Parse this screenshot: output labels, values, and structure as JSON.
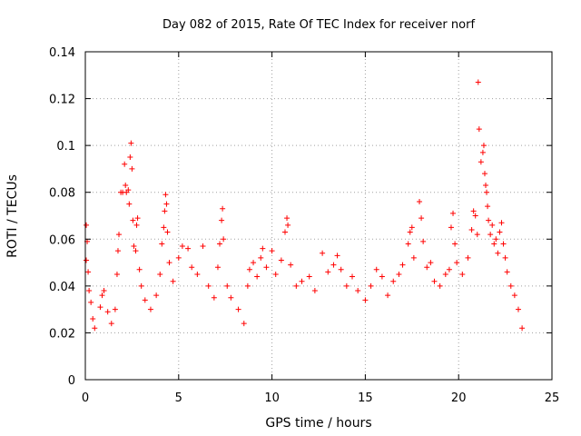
{
  "chart_data": {
    "type": "scatter",
    "title": "Day 082 of 2015, Rate Of TEC Index for receiver norf",
    "xlabel": "GPS time / hours",
    "ylabel": "ROTI / TECUs",
    "xlim": [
      0,
      25
    ],
    "ylim": [
      0,
      0.14
    ],
    "xticks": [
      0,
      5,
      10,
      15,
      20,
      25
    ],
    "xtick_labels": [
      "0",
      "5",
      "10",
      "15",
      "20",
      "25"
    ],
    "yticks": [
      0,
      0.02,
      0.04,
      0.06,
      0.08,
      0.1,
      0.12,
      0.14
    ],
    "ytick_labels": [
      "0",
      "0.02",
      "0.04",
      "0.06",
      "0.08",
      "0.1",
      "0.12",
      "0.14"
    ],
    "grid": true,
    "marker": "plus",
    "color": "#ff0000",
    "series": [
      {
        "name": "ROTI",
        "points": [
          [
            0.05,
            0.066
          ],
          [
            0.1,
            0.059
          ],
          [
            0.05,
            0.051
          ],
          [
            0.15,
            0.046
          ],
          [
            0.2,
            0.038
          ],
          [
            0.3,
            0.033
          ],
          [
            0.4,
            0.026
          ],
          [
            0.5,
            0.022
          ],
          [
            0.8,
            0.031
          ],
          [
            0.9,
            0.036
          ],
          [
            1.0,
            0.038
          ],
          [
            1.2,
            0.029
          ],
          [
            1.4,
            0.024
          ],
          [
            1.6,
            0.03
          ],
          [
            1.7,
            0.045
          ],
          [
            1.75,
            0.055
          ],
          [
            1.8,
            0.062
          ],
          [
            1.9,
            0.08
          ],
          [
            2.0,
            0.08
          ],
          [
            2.1,
            0.092
          ],
          [
            2.15,
            0.083
          ],
          [
            2.2,
            0.08
          ],
          [
            2.3,
            0.081
          ],
          [
            2.35,
            0.075
          ],
          [
            2.4,
            0.095
          ],
          [
            2.45,
            0.101
          ],
          [
            2.5,
            0.09
          ],
          [
            2.55,
            0.068
          ],
          [
            2.6,
            0.057
          ],
          [
            2.7,
            0.055
          ],
          [
            2.75,
            0.066
          ],
          [
            2.8,
            0.069
          ],
          [
            2.9,
            0.047
          ],
          [
            3.0,
            0.04
          ],
          [
            3.2,
            0.034
          ],
          [
            3.5,
            0.03
          ],
          [
            3.8,
            0.036
          ],
          [
            4.0,
            0.045
          ],
          [
            4.1,
            0.058
          ],
          [
            4.2,
            0.065
          ],
          [
            4.25,
            0.072
          ],
          [
            4.3,
            0.079
          ],
          [
            4.35,
            0.075
          ],
          [
            4.4,
            0.063
          ],
          [
            4.5,
            0.05
          ],
          [
            4.7,
            0.042
          ],
          [
            5.0,
            0.052
          ],
          [
            5.2,
            0.057
          ],
          [
            5.5,
            0.056
          ],
          [
            5.7,
            0.048
          ],
          [
            6.0,
            0.045
          ],
          [
            6.3,
            0.057
          ],
          [
            6.6,
            0.04
          ],
          [
            6.9,
            0.035
          ],
          [
            7.1,
            0.048
          ],
          [
            7.2,
            0.058
          ],
          [
            7.3,
            0.068
          ],
          [
            7.35,
            0.073
          ],
          [
            7.4,
            0.06
          ],
          [
            7.6,
            0.04
          ],
          [
            7.8,
            0.035
          ],
          [
            8.2,
            0.03
          ],
          [
            8.5,
            0.024
          ],
          [
            8.7,
            0.04
          ],
          [
            8.8,
            0.047
          ],
          [
            9.0,
            0.05
          ],
          [
            9.2,
            0.044
          ],
          [
            9.4,
            0.052
          ],
          [
            9.5,
            0.056
          ],
          [
            9.7,
            0.048
          ],
          [
            10.0,
            0.055
          ],
          [
            10.2,
            0.045
          ],
          [
            10.5,
            0.051
          ],
          [
            10.7,
            0.063
          ],
          [
            10.8,
            0.069
          ],
          [
            10.85,
            0.066
          ],
          [
            11.0,
            0.049
          ],
          [
            11.3,
            0.04
          ],
          [
            11.6,
            0.042
          ],
          [
            12.0,
            0.044
          ],
          [
            12.3,
            0.038
          ],
          [
            12.7,
            0.054
          ],
          [
            13.0,
            0.046
          ],
          [
            13.3,
            0.049
          ],
          [
            13.5,
            0.053
          ],
          [
            13.7,
            0.047
          ],
          [
            14.0,
            0.04
          ],
          [
            14.3,
            0.044
          ],
          [
            14.6,
            0.038
          ],
          [
            15.0,
            0.034
          ],
          [
            15.3,
            0.04
          ],
          [
            15.6,
            0.047
          ],
          [
            15.9,
            0.044
          ],
          [
            16.2,
            0.036
          ],
          [
            16.5,
            0.042
          ],
          [
            16.8,
            0.045
          ],
          [
            17.0,
            0.049
          ],
          [
            17.3,
            0.058
          ],
          [
            17.4,
            0.063
          ],
          [
            17.5,
            0.065
          ],
          [
            17.6,
            0.052
          ],
          [
            17.9,
            0.076
          ],
          [
            18.0,
            0.069
          ],
          [
            18.1,
            0.059
          ],
          [
            18.3,
            0.048
          ],
          [
            18.5,
            0.05
          ],
          [
            18.7,
            0.042
          ],
          [
            19.0,
            0.04
          ],
          [
            19.3,
            0.045
          ],
          [
            19.5,
            0.047
          ],
          [
            19.6,
            0.065
          ],
          [
            19.7,
            0.071
          ],
          [
            19.8,
            0.058
          ],
          [
            19.9,
            0.05
          ],
          [
            20.2,
            0.045
          ],
          [
            20.5,
            0.052
          ],
          [
            20.7,
            0.064
          ],
          [
            20.8,
            0.072
          ],
          [
            20.9,
            0.07
          ],
          [
            21.0,
            0.062
          ],
          [
            21.05,
            0.127
          ],
          [
            21.1,
            0.107
          ],
          [
            21.2,
            0.093
          ],
          [
            21.3,
            0.097
          ],
          [
            21.35,
            0.1
          ],
          [
            21.4,
            0.088
          ],
          [
            21.45,
            0.083
          ],
          [
            21.5,
            0.08
          ],
          [
            21.55,
            0.074
          ],
          [
            21.6,
            0.068
          ],
          [
            21.7,
            0.062
          ],
          [
            21.8,
            0.066
          ],
          [
            21.9,
            0.058
          ],
          [
            22.0,
            0.06
          ],
          [
            22.1,
            0.054
          ],
          [
            22.2,
            0.063
          ],
          [
            22.3,
            0.067
          ],
          [
            22.4,
            0.058
          ],
          [
            22.5,
            0.052
          ],
          [
            22.6,
            0.046
          ],
          [
            22.8,
            0.04
          ],
          [
            23.0,
            0.036
          ],
          [
            23.2,
            0.03
          ],
          [
            23.4,
            0.022
          ]
        ]
      }
    ]
  }
}
